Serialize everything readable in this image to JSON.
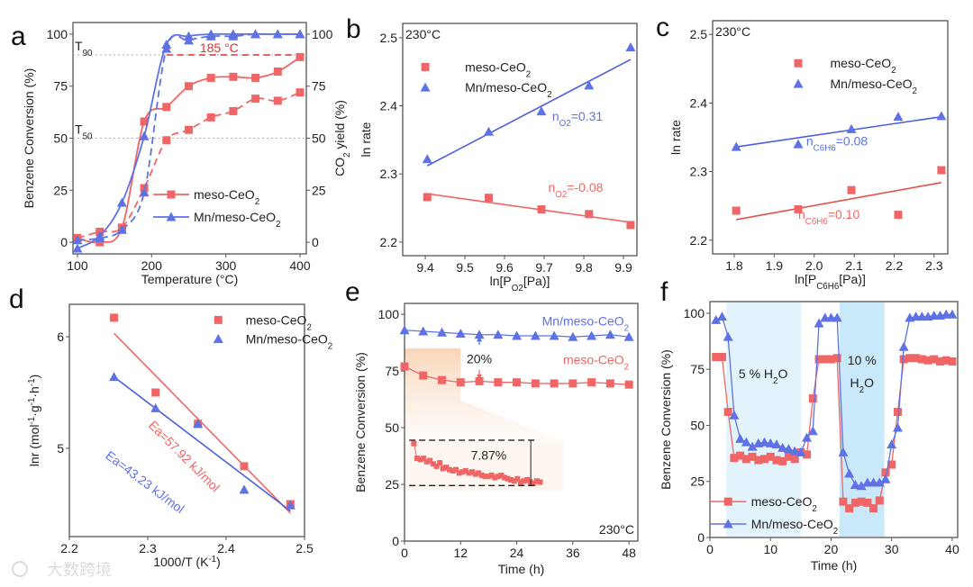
{
  "figure": {
    "watermark": "大数跨境"
  },
  "colors": {
    "meso": "#f06565",
    "mn": "#5e72e6",
    "meso_fit": "#e0524a",
    "mn_fit": "#4b5fdc",
    "grid_ref": "#aaaaaa",
    "shade_light": "#e3f3fc",
    "shade_dark": "#c9e8fa",
    "highlight": "#f9d9c0"
  },
  "chart_data": [
    {
      "panel": "a",
      "type": "line",
      "xlabel": "Temperature (°C)",
      "ylabel": "Benzene Conversion (%)",
      "y2label": [
        {
          "t": "CO"
        },
        {
          "t": "2",
          "sub": true
        },
        {
          "t": " yield (%)"
        }
      ],
      "xlim": [
        94,
        408.5
      ],
      "ylim": [
        -5.6,
        105.6
      ],
      "xticks": [
        100,
        200,
        300,
        400
      ],
      "yticks": [
        0,
        25,
        50,
        75,
        100
      ],
      "y2ticks": [
        0,
        25,
        50,
        75,
        100
      ],
      "x": [
        100,
        130,
        160,
        190,
        220,
        250,
        280,
        310,
        340,
        370,
        400
      ],
      "series": [
        {
          "legend_ref": 0,
          "style": "solid",
          "axis": "left",
          "values": [
            2,
            0,
            7,
            58,
            65,
            75,
            79,
            79.5,
            79,
            82,
            89
          ]
        },
        {
          "legend_ref": 0,
          "style": "dashed",
          "axis": "right",
          "values": [
            2,
            5,
            7,
            26,
            49,
            54,
            60,
            63,
            69,
            68,
            72
          ]
        },
        {
          "legend_ref": 1,
          "style": "solid",
          "axis": "left",
          "values": [
            -3,
            3,
            19,
            51,
            95,
            99,
            100,
            100,
            100,
            100,
            100
          ]
        },
        {
          "legend_ref": 1,
          "style": "dashed",
          "axis": "right",
          "values": [
            1,
            2,
            6,
            24,
            93,
            97,
            99,
            99,
            100,
            100,
            100
          ]
        }
      ],
      "legend": [
        {
          "label": [
            {
              "t": "meso-CeO"
            },
            {
              "t": "2",
              "sub": true
            }
          ],
          "color": "#f06565",
          "marker": "square"
        },
        {
          "label": [
            {
              "t": "Mn/meso-CeO"
            },
            {
              "t": "2",
              "sub": true
            }
          ],
          "color": "#5e72e6",
          "marker": "triangle"
        }
      ],
      "legend_placement": "lower-right",
      "reference_lines": [
        {
          "y": 90,
          "label": [
            {
              "t": "T"
            },
            {
              "t": "90",
              "sub": true
            }
          ]
        },
        {
          "y": 50,
          "label": [
            {
              "t": "T"
            },
            {
              "t": "50",
              "sub": true
            }
          ]
        }
      ],
      "annotation": {
        "text": "185 °C",
        "y": 90,
        "x_from": 220,
        "x_to": 400,
        "color": "#e03030"
      }
    },
    {
      "panel": "b",
      "type": "scatter",
      "xlabel": [
        {
          "t": "ln[P"
        },
        {
          "t": "O2",
          "sub": true
        },
        {
          "t": "[Pa)]"
        }
      ],
      "ylabel": "ln rate",
      "xlim": [
        9.343,
        9.934
      ],
      "ylim": [
        2.18,
        2.521
      ],
      "xticks": [
        9.4,
        9.5,
        9.6,
        9.7,
        9.8,
        9.9
      ],
      "yticks": [
        2.2,
        2.3,
        2.4,
        2.5
      ],
      "tick_labels_x": [
        "9.4",
        "9.5",
        "9.6",
        "9.7",
        "9.8",
        "9.9"
      ],
      "tick_labels_y": [
        "2.2",
        "2.3",
        "2.4",
        "2.5"
      ],
      "condition": "230°C",
      "x": [
        9.405,
        9.56,
        9.693,
        9.813,
        9.918
      ],
      "series": [
        {
          "legend_ref": 0,
          "values": [
            2.266,
            2.265,
            2.248,
            2.241,
            2.225
          ],
          "fit": [
            2.271,
            2.229
          ],
          "fit_label": [
            {
              "t": "n"
            },
            {
              "t": "O2",
              "sub": true
            },
            {
              "t": "=-0.08"
            }
          ]
        },
        {
          "legend_ref": 1,
          "values": [
            2.322,
            2.362,
            2.392,
            2.43,
            2.486
          ],
          "fit": [
            2.312,
            2.468
          ],
          "fit_label": [
            {
              "t": "n"
            },
            {
              "t": "O2",
              "sub": true
            },
            {
              "t": "=0.31"
            }
          ]
        }
      ],
      "legend": [
        {
          "label": [
            {
              "t": "meso-CeO"
            },
            {
              "t": "2",
              "sub": true
            }
          ],
          "color": "#f06565",
          "marker": "square"
        },
        {
          "label": [
            {
              "t": "Mn/meso-CeO"
            },
            {
              "t": "2",
              "sub": true
            }
          ],
          "color": "#5e72e6",
          "marker": "triangle"
        }
      ],
      "legend_placement": "top-left"
    },
    {
      "panel": "c",
      "type": "scatter",
      "xlabel": [
        {
          "t": "ln[P"
        },
        {
          "t": "C6H6",
          "sub": true
        },
        {
          "t": "[Pa)]"
        }
      ],
      "ylabel": "ln rate",
      "xlim": [
        1.746,
        2.334
      ],
      "ylim": [
        2.18,
        2.52
      ],
      "xticks": [
        1.8,
        1.9,
        2.0,
        2.1,
        2.2,
        2.3
      ],
      "yticks": [
        2.2,
        2.3,
        2.4,
        2.5
      ],
      "tick_labels_x": [
        "1.8",
        "1.9",
        "2.0",
        "2.1",
        "2.2",
        "2.3"
      ],
      "tick_labels_y": [
        "2.2",
        "2.3",
        "2.4",
        "2.5"
      ],
      "condition": "230°C",
      "x": [
        1.805,
        1.96,
        2.093,
        2.21,
        2.318
      ],
      "series": [
        {
          "legend_ref": 0,
          "values": [
            2.243,
            2.245,
            2.273,
            2.237,
            2.302
          ],
          "fit": [
            2.23,
            2.284
          ],
          "fit_label": [
            {
              "t": "n"
            },
            {
              "t": "C6H6",
              "sub": true
            },
            {
              "t": "=0.10"
            }
          ]
        },
        {
          "legend_ref": 1,
          "values": [
            2.336,
            2.34,
            2.362,
            2.38,
            2.381
          ],
          "fit": [
            2.336,
            2.38
          ],
          "fit_label": [
            {
              "t": "n"
            },
            {
              "t": "C6H6",
              "sub": true
            },
            {
              "t": "=0.08"
            }
          ]
        }
      ],
      "legend": [
        {
          "label": [
            {
              "t": "meso-CeO"
            },
            {
              "t": "2",
              "sub": true
            }
          ],
          "color": "#f06565",
          "marker": "square"
        },
        {
          "label": [
            {
              "t": "Mn/meso-CeO"
            },
            {
              "t": "2",
              "sub": true
            }
          ],
          "color": "#5e72e6",
          "marker": "triangle"
        }
      ],
      "legend_placement": "top-right"
    },
    {
      "panel": "d",
      "type": "scatter",
      "xlabel": [
        {
          "t": "1000/T (K"
        },
        {
          "t": "-1",
          "sup": true
        },
        {
          "t": ")"
        }
      ],
      "ylabel": [
        {
          "t": "lnr (mol"
        },
        {
          "t": "-1",
          "sup": true
        },
        {
          "t": "·g"
        },
        {
          "t": "-1",
          "sup": true
        },
        {
          "t": "·h"
        },
        {
          "t": "-1",
          "sup": true
        },
        {
          "t": ")"
        }
      ],
      "xlim": [
        2.2,
        2.5
      ],
      "ylim": [
        4.21,
        6.29
      ],
      "xticks": [
        2.2,
        2.3,
        2.4,
        2.5
      ],
      "yticks": [
        5,
        6
      ],
      "tick_labels_x": [
        "2.2",
        "2.3",
        "2.4",
        "2.5"
      ],
      "tick_labels_y": [
        "5",
        "6"
      ],
      "x": [
        2.257,
        2.31,
        2.364,
        2.423,
        2.482
      ],
      "series": [
        {
          "legend_ref": 0,
          "values": [
            6.17,
            5.5,
            5.22,
            4.84,
            4.5
          ],
          "fit": [
            6.03,
            4.42
          ],
          "fit_label": "Ea=57.92 kJ/mol"
        },
        {
          "legend_ref": 1,
          "values": [
            5.64,
            5.36,
            5.22,
            4.63,
            4.49
          ],
          "fit": [
            5.64,
            4.44
          ],
          "fit_label": "Ea=43.23 kJ/mol"
        }
      ],
      "legend": [
        {
          "label": [
            {
              "t": "meso-CeO"
            },
            {
              "t": "2",
              "sub": true
            }
          ],
          "color": "#f06565",
          "marker": "square"
        },
        {
          "label": [
            {
              "t": "Mn/meso-CeO"
            },
            {
              "t": "2",
              "sub": true
            }
          ],
          "color": "#5e72e6",
          "marker": "triangle"
        }
      ],
      "legend_placement": "top-right"
    },
    {
      "panel": "e",
      "type": "line",
      "xlabel": "Time (h)",
      "ylabel": "Benzene Conversion (%)",
      "xlim": [
        0,
        49.9
      ],
      "ylim": [
        0,
        104.8
      ],
      "xticks": [
        0,
        12,
        24,
        36,
        48
      ],
      "yticks": [
        0,
        25,
        50,
        75,
        100
      ],
      "condition": "230°C",
      "x": [
        0,
        4,
        8,
        12,
        16,
        20,
        24,
        28,
        32,
        36,
        40,
        44,
        48
      ],
      "series": [
        {
          "legend_ref": 0,
          "values": [
            77,
            73,
            71,
            70,
            70.5,
            70,
            70,
            69.5,
            69.5,
            69.5,
            70,
            69.5,
            69
          ]
        },
        {
          "legend_ref": 1,
          "values": [
            93,
            92.5,
            92,
            91.5,
            91,
            91,
            90.5,
            90.5,
            90.5,
            90,
            90.5,
            91,
            90
          ]
        }
      ],
      "legend": [
        {
          "label": [
            {
              "t": "meso-CeO"
            },
            {
              "t": "2",
              "sub": true
            }
          ],
          "color": "#f06565",
          "marker": "square"
        },
        {
          "label": [
            {
              "t": "Mn/meso-CeO"
            },
            {
              "t": "2",
              "sub": true
            }
          ],
          "color": "#5e72e6",
          "marker": "triangle"
        }
      ],
      "gap_annotation": {
        "text": "20%",
        "x": 16
      },
      "highlight": {
        "x": [
          0,
          12
        ],
        "y": [
          62,
          85
        ]
      },
      "inset": {
        "x_range": [
          2,
          29
        ],
        "y": [
          43,
          36.5,
          36,
          36.5,
          35,
          35.5,
          34,
          33,
          34.5,
          32,
          32.5,
          31.5,
          31,
          31.5,
          30,
          30.5,
          31,
          30,
          30.5,
          29.5,
          30,
          29,
          28.5,
          28.5,
          29,
          28,
          28.5,
          29,
          28,
          27.5,
          27,
          26.5,
          27.5,
          26,
          26.5,
          27,
          26,
          25.5,
          26.5,
          26
        ],
        "bracket": [
          44.5,
          24.5
        ],
        "label": "7.87%"
      }
    },
    {
      "panel": "f",
      "type": "line",
      "xlabel": "Time (h)",
      "ylabel": "Benzene Conversion (%)",
      "xlim": [
        0,
        40.9
      ],
      "ylim": [
        0,
        105.2
      ],
      "xticks": [
        0,
        10,
        20,
        30,
        40
      ],
      "yticks": [
        0,
        25,
        50,
        75,
        100
      ],
      "x": [
        1,
        2,
        3,
        4,
        5,
        6,
        7,
        8,
        9,
        10,
        11,
        12,
        13,
        14,
        15,
        16,
        17,
        18,
        19,
        20,
        21,
        22,
        23,
        24,
        25,
        26,
        27,
        28,
        29,
        30,
        31,
        32,
        33,
        34,
        35,
        36,
        37,
        38,
        39,
        40
      ],
      "series": [
        {
          "legend_ref": 0,
          "values": [
            80.5,
            80.5,
            56,
            35.5,
            36.5,
            35,
            36,
            34.5,
            35,
            36,
            34.5,
            34,
            36,
            35,
            38,
            37,
            62,
            79.5,
            79.5,
            79.5,
            80,
            16,
            13,
            15.5,
            16,
            15.5,
            13,
            16.5,
            29,
            32.5,
            56,
            79.5,
            80,
            80,
            79.5,
            79,
            79.5,
            78.5,
            79,
            78.5
          ]
        },
        {
          "legend_ref": 1,
          "values": [
            97,
            98.5,
            89.5,
            54.5,
            44,
            42.5,
            40.5,
            42,
            42.5,
            42,
            41.5,
            40,
            39.5,
            38.5,
            38,
            44.5,
            47.5,
            95.5,
            98,
            98,
            98,
            38,
            28.5,
            23.5,
            23,
            24.5,
            24.5,
            24.5,
            26,
            41.5,
            49,
            85,
            98,
            98.5,
            98.5,
            98.5,
            99,
            99,
            99.5,
            99.5
          ]
        }
      ],
      "legend": [
        {
          "label": [
            {
              "t": "meso-CeO"
            },
            {
              "t": "2",
              "sub": true
            }
          ],
          "color": "#f06565",
          "marker": "square"
        },
        {
          "label": [
            {
              "t": "Mn/meso-CeO"
            },
            {
              "t": "2",
              "sub": true
            }
          ],
          "color": "#5e72e6",
          "marker": "triangle"
        }
      ],
      "legend_placement": "lower-left",
      "shaded_regions": [
        {
          "x": [
            2.7,
            15
          ],
          "label": [
            {
              "t": "5 % H"
            },
            {
              "t": "2",
              "sub": true
            },
            {
              "t": "O"
            }
          ],
          "tone": "light"
        },
        {
          "x": [
            21.4,
            28.8
          ],
          "label_line1": "10 %",
          "label": [
            {
              "t": "H"
            },
            {
              "t": "2",
              "sub": true
            },
            {
              "t": "O"
            }
          ],
          "tone": "dark"
        }
      ]
    }
  ]
}
